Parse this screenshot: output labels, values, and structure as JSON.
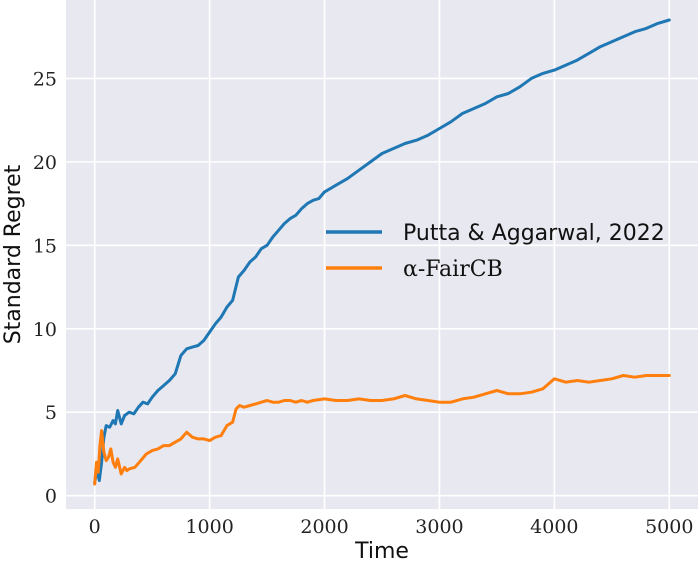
{
  "chart_data": {
    "type": "line",
    "xlabel": "Time",
    "ylabel": "Standard Regret",
    "xlim": [
      -250,
      5250
    ],
    "ylim": [
      -0.8,
      29.7
    ],
    "xticks": [
      0,
      1000,
      2000,
      3000,
      4000,
      5000
    ],
    "yticks": [
      0,
      5,
      10,
      15,
      20,
      25
    ],
    "grid": true,
    "legend_position": "center-right",
    "colors": {
      "background": "#e8e8f0",
      "grid": "#ffffff"
    },
    "series": [
      {
        "name": "Putta & Aggarwal, 2022",
        "color": "#1f77b4",
        "x": [
          0,
          20,
          40,
          60,
          80,
          100,
          130,
          160,
          180,
          200,
          230,
          260,
          300,
          340,
          380,
          420,
          460,
          500,
          550,
          600,
          650,
          700,
          750,
          800,
          850,
          900,
          950,
          1000,
          1050,
          1100,
          1150,
          1200,
          1250,
          1300,
          1350,
          1400,
          1450,
          1500,
          1550,
          1600,
          1650,
          1700,
          1750,
          1800,
          1850,
          1900,
          1950,
          2000,
          2050,
          2100,
          2200,
          2300,
          2400,
          2500,
          2600,
          2700,
          2800,
          2900,
          3000,
          3100,
          3200,
          3300,
          3400,
          3500,
          3600,
          3700,
          3800,
          3900,
          4000,
          4100,
          4200,
          4300,
          4400,
          4500,
          4600,
          4700,
          4800,
          4900,
          5000
        ],
        "values": [
          0.8,
          1.5,
          0.9,
          2.0,
          3.5,
          4.2,
          4.1,
          4.5,
          4.3,
          5.1,
          4.3,
          4.8,
          5.0,
          4.9,
          5.3,
          5.6,
          5.5,
          5.9,
          6.3,
          6.6,
          6.9,
          7.3,
          8.4,
          8.8,
          8.9,
          9.0,
          9.3,
          9.8,
          10.3,
          10.7,
          11.3,
          11.7,
          13.1,
          13.5,
          14.0,
          14.3,
          14.8,
          15.0,
          15.5,
          15.9,
          16.3,
          16.6,
          16.8,
          17.2,
          17.5,
          17.7,
          17.8,
          18.2,
          18.4,
          18.6,
          19.0,
          19.5,
          20.0,
          20.5,
          20.8,
          21.1,
          21.3,
          21.6,
          22.0,
          22.4,
          22.9,
          23.2,
          23.5,
          23.9,
          24.1,
          24.5,
          25.0,
          25.3,
          25.5,
          25.8,
          26.1,
          26.5,
          26.9,
          27.2,
          27.5,
          27.8,
          28.0,
          28.3,
          28.5
        ]
      },
      {
        "name": "α-FairCB",
        "color": "#ff7f0e",
        "x": [
          0,
          15,
          30,
          45,
          60,
          80,
          100,
          120,
          140,
          160,
          180,
          200,
          230,
          260,
          280,
          300,
          350,
          400,
          450,
          500,
          550,
          600,
          650,
          700,
          750,
          800,
          850,
          900,
          950,
          1000,
          1050,
          1100,
          1150,
          1200,
          1230,
          1260,
          1300,
          1350,
          1400,
          1450,
          1500,
          1550,
          1600,
          1650,
          1700,
          1750,
          1800,
          1850,
          1900,
          2000,
          2100,
          2200,
          2300,
          2400,
          2500,
          2600,
          2700,
          2800,
          2900,
          3000,
          3100,
          3200,
          3300,
          3400,
          3500,
          3600,
          3700,
          3800,
          3900,
          4000,
          4100,
          4200,
          4300,
          4400,
          4500,
          4600,
          4700,
          4800,
          4900,
          5000
        ],
        "values": [
          0.7,
          2.0,
          1.4,
          3.0,
          3.9,
          2.6,
          2.1,
          2.3,
          2.8,
          2.0,
          1.7,
          2.2,
          1.3,
          1.7,
          1.5,
          1.6,
          1.7,
          2.1,
          2.5,
          2.7,
          2.8,
          3.0,
          3.0,
          3.2,
          3.4,
          3.8,
          3.5,
          3.4,
          3.4,
          3.3,
          3.5,
          3.6,
          4.2,
          4.4,
          5.2,
          5.4,
          5.3,
          5.4,
          5.5,
          5.6,
          5.7,
          5.6,
          5.6,
          5.7,
          5.7,
          5.6,
          5.7,
          5.6,
          5.7,
          5.8,
          5.7,
          5.7,
          5.8,
          5.7,
          5.7,
          5.8,
          6.0,
          5.8,
          5.7,
          5.6,
          5.6,
          5.8,
          5.9,
          6.1,
          6.3,
          6.1,
          6.1,
          6.2,
          6.4,
          7.0,
          6.8,
          6.9,
          6.8,
          6.9,
          7.0,
          7.2,
          7.1,
          7.2,
          7.2,
          7.2
        ]
      }
    ]
  }
}
